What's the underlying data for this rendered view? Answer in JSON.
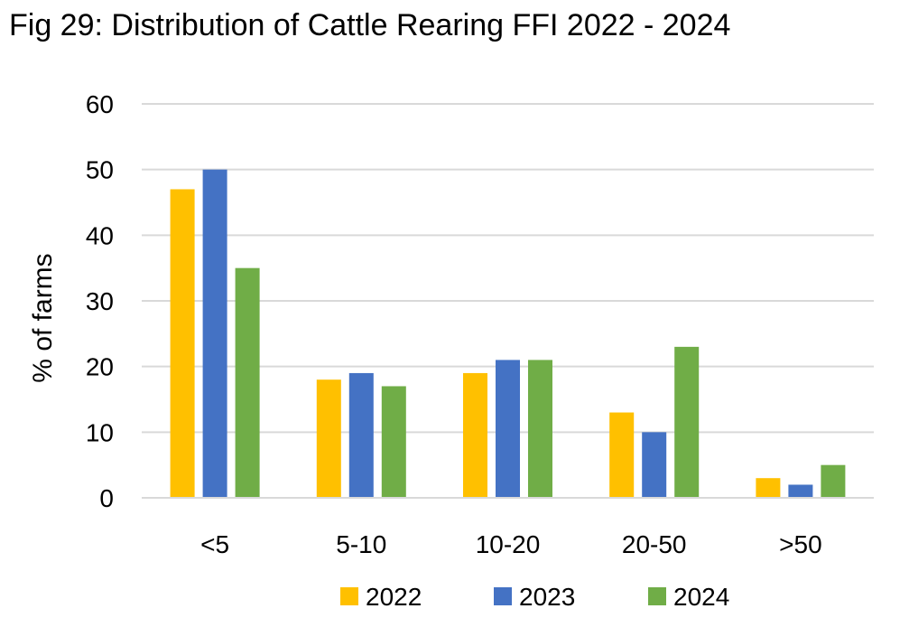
{
  "figure": {
    "title": "Fig 29: Distribution of Cattle Rearing FFI 2022 - 2024"
  },
  "chart_data": {
    "type": "bar",
    "title": "Fig 29: Distribution of Cattle Rearing FFI 2022 - 2024",
    "xlabel": "",
    "ylabel": "% of farms",
    "categories": [
      "<5",
      "5-10",
      "10-20",
      "20-50",
      ">50"
    ],
    "series": [
      {
        "name": "2022",
        "color": "#FFC000",
        "values": [
          47,
          18,
          19,
          13,
          3
        ]
      },
      {
        "name": "2023",
        "color": "#4472C4",
        "values": [
          50,
          19,
          21,
          10,
          2
        ]
      },
      {
        "name": "2024",
        "color": "#70AD47",
        "values": [
          35,
          17,
          21,
          23,
          5
        ]
      }
    ],
    "ylim": [
      0,
      60
    ],
    "yticks": [
      "0",
      "10",
      "20",
      "30",
      "40",
      "50",
      "60"
    ],
    "grid": true,
    "gridColor": "#D9D9D9",
    "legend": "bottom"
  }
}
